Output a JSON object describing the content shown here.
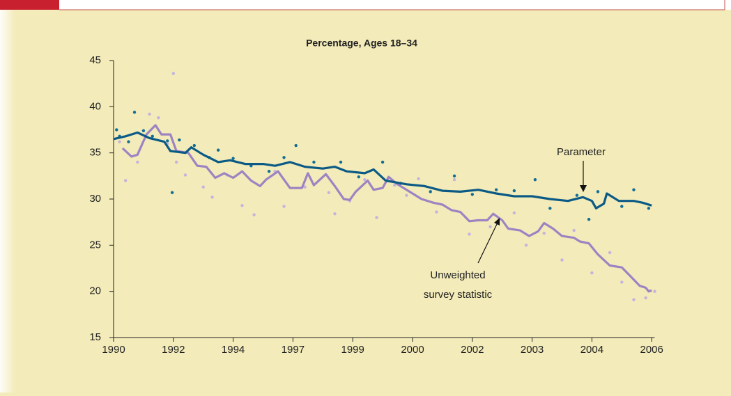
{
  "chart_data": {
    "type": "line",
    "title": "Percentage, Ages 18–34",
    "xlim": [
      0,
      9.05
    ],
    "ylim": [
      15,
      45
    ],
    "xticks": [
      {
        "value": 0,
        "label": "1990"
      },
      {
        "value": 1,
        "label": "1992"
      },
      {
        "value": 2,
        "label": "1994"
      },
      {
        "value": 3,
        "label": "1997"
      },
      {
        "value": 4,
        "label": "1999"
      },
      {
        "value": 5,
        "label": "2000"
      },
      {
        "value": 6,
        "label": "2002"
      },
      {
        "value": 7,
        "label": "2003"
      },
      {
        "value": 8,
        "label": "2004"
      },
      {
        "value": 9,
        "label": "2006"
      }
    ],
    "yticks": [
      15,
      20,
      25,
      30,
      35,
      40,
      45
    ],
    "annotations": [
      "Parameter",
      "Unweighted",
      "survey statistic"
    ],
    "series": [
      {
        "color": "#0b5a86",
        "dot_color": "#126e94",
        "x": [
          0,
          0.2,
          0.4,
          0.6,
          0.85,
          0.95,
          1.2,
          1.3,
          1.5,
          1.75,
          1.95,
          2.2,
          2.5,
          2.7,
          2.95,
          3.2,
          3.5,
          3.7,
          3.9,
          4.2,
          4.35,
          4.55,
          4.9,
          5.2,
          5.5,
          5.8,
          6.1,
          6.4,
          6.7,
          7.0,
          7.3,
          7.6,
          7.85,
          8.0,
          8.07,
          8.2,
          8.25,
          8.45,
          8.7,
          8.85,
          9.0
        ],
        "values": [
          36.5,
          36.8,
          37.2,
          36.6,
          36.2,
          35.2,
          35.0,
          35.6,
          34.8,
          34.0,
          34.2,
          33.8,
          33.8,
          33.6,
          34.0,
          33.5,
          33.3,
          33.5,
          33.0,
          32.8,
          33.2,
          32.0,
          31.6,
          31.4,
          30.9,
          30.8,
          31.0,
          30.6,
          30.3,
          30.3,
          30.0,
          29.8,
          30.2,
          29.8,
          29.0,
          29.5,
          30.6,
          29.8,
          29.8,
          29.6,
          29.3
        ],
        "dots": {
          "x": [
            0.05,
            0.1,
            0.25,
            0.35,
            0.5,
            0.65,
            0.9,
            0.98,
            1.1,
            1.35,
            1.6,
            1.75,
            2.0,
            2.3,
            2.6,
            2.85,
            3.05,
            3.35,
            3.8,
            4.1,
            4.5,
            4.8,
            5.3,
            5.7,
            6.0,
            6.4,
            6.7,
            7.05,
            7.3,
            7.75,
            7.95,
            8.1,
            8.5,
            8.7,
            8.95
          ],
          "y": [
            37.5,
            36.8,
            36.2,
            39.4,
            37.4,
            36.8,
            36.3,
            30.7,
            36.4,
            35.8,
            34.5,
            35.3,
            34.4,
            33.6,
            33.0,
            34.5,
            35.8,
            34.0,
            34.0,
            32.4,
            34.0,
            31.7,
            30.8,
            32.5,
            30.5,
            31.0,
            30.9,
            32.1,
            29.0,
            30.4,
            27.8,
            30.8,
            29.2,
            31.0,
            29.0
          ]
        }
      },
      {
        "color": "#9c84c3",
        "dot_color": "#c4b3de",
        "x": [
          0.15,
          0.3,
          0.4,
          0.55,
          0.7,
          0.8,
          0.95,
          1.05,
          1.25,
          1.4,
          1.55,
          1.7,
          1.85,
          2.0,
          2.15,
          2.3,
          2.45,
          2.55,
          2.75,
          2.95,
          3.15,
          3.25,
          3.35,
          3.55,
          3.7,
          3.85,
          3.95,
          4.05,
          4.25,
          4.35,
          4.5,
          4.6,
          4.75,
          4.95,
          5.15,
          5.35,
          5.5,
          5.65,
          5.8,
          5.95,
          6.1,
          6.25,
          6.35,
          6.5,
          6.6,
          6.8,
          6.95,
          7.1,
          7.2,
          7.35,
          7.5,
          7.7,
          7.8,
          7.95,
          8.1,
          8.3,
          8.5,
          8.65,
          8.8,
          8.9,
          8.95,
          9.0
        ],
        "values": [
          35.5,
          34.6,
          34.8,
          37.0,
          38.0,
          37.0,
          37.0,
          35.2,
          35.0,
          33.6,
          33.5,
          32.3,
          32.8,
          32.3,
          33.0,
          32.0,
          31.4,
          32.1,
          33.0,
          31.2,
          31.2,
          32.8,
          31.5,
          32.7,
          31.4,
          30.0,
          29.9,
          30.8,
          32.0,
          31.0,
          31.2,
          32.4,
          31.6,
          30.8,
          30.0,
          29.6,
          29.4,
          28.8,
          28.6,
          27.6,
          27.7,
          27.7,
          28.4,
          27.7,
          26.8,
          26.6,
          26.0,
          26.5,
          27.4,
          26.8,
          26.0,
          25.8,
          25.4,
          25.2,
          24.0,
          22.8,
          22.6,
          21.6,
          20.6,
          20.4,
          20.0,
          20.1
        ],
        "dots": {
          "x": [
            0.1,
            0.2,
            0.4,
            0.6,
            0.75,
            0.9,
            1.0,
            1.05,
            1.2,
            1.5,
            1.65,
            1.9,
            2.15,
            2.35,
            2.7,
            2.85,
            3.2,
            3.6,
            3.7,
            3.95,
            4.2,
            4.4,
            4.7,
            4.9,
            5.1,
            5.4,
            5.7,
            5.95,
            6.3,
            6.7,
            6.9,
            7.2,
            7.5,
            7.7,
            8.0,
            8.3,
            8.5,
            8.7,
            8.9,
            9.05
          ],
          "y": [
            36.2,
            32.0,
            34.0,
            39.2,
            38.8,
            36.0,
            43.6,
            34.0,
            32.6,
            31.3,
            30.2,
            32.6,
            29.3,
            28.3,
            33.0,
            29.2,
            31.3,
            30.7,
            28.4,
            29.8,
            32.1,
            28.0,
            31.5,
            30.4,
            32.2,
            28.6,
            32.1,
            26.2,
            27.0,
            28.5,
            25.0,
            26.3,
            23.4,
            26.6,
            22.0,
            24.2,
            21.0,
            19.1,
            19.3,
            20.0
          ]
        }
      }
    ]
  }
}
